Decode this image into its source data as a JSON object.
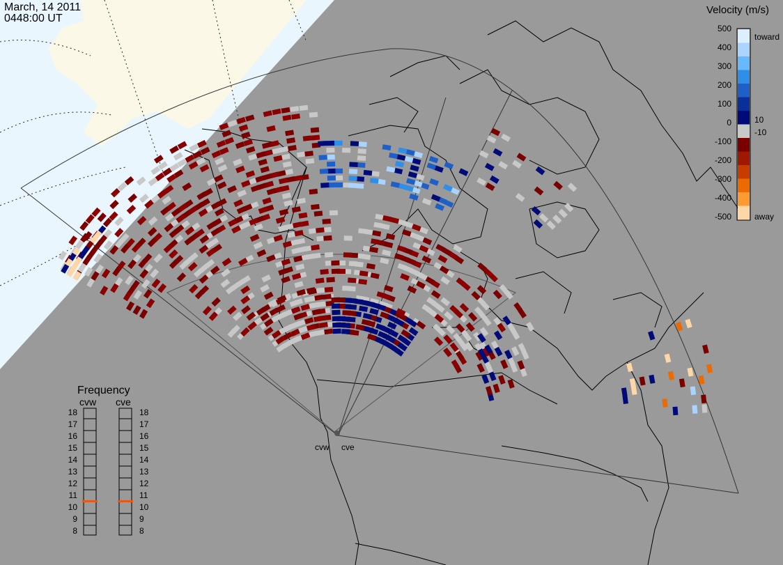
{
  "header": {
    "date": "March, 14 2011",
    "time": "0448:00 UT"
  },
  "legend": {
    "title": "Velocity (m/s)",
    "ticks": [
      "500",
      "400",
      "300",
      "200",
      "100",
      "10",
      "0",
      "-10",
      "-100",
      "-200",
      "-300",
      "-400",
      "-500"
    ],
    "toward_label": "toward",
    "away_label": "away",
    "colors": [
      "#ddeeff",
      "#aad4ff",
      "#66b8ff",
      "#2f8ee8",
      "#1f5fc8",
      "#0a2f9a",
      "#000a78",
      "#c8c8c8",
      "#7a0000",
      "#a01800",
      "#c83c00",
      "#ec6a00",
      "#ff9a33",
      "#ffd6a8"
    ]
  },
  "frequency_panel": {
    "title": "Frequency",
    "radars": [
      "cvw",
      "cve"
    ],
    "levels": [
      "18",
      "17",
      "16",
      "15",
      "14",
      "13",
      "12",
      "11",
      "10",
      "9",
      "8"
    ],
    "selected_mhz": {
      "cvw": 10.5,
      "cve": 10.5
    },
    "marker_color": "#e05a1e"
  },
  "map": {
    "radar_labels": [
      "cvw",
      "cve"
    ],
    "land_color": "#fbf8e8",
    "ocean_color": "#eaf6fd",
    "night_color": "#9a9a9a",
    "ground_scatter_color": "#c8c8c8"
  }
}
